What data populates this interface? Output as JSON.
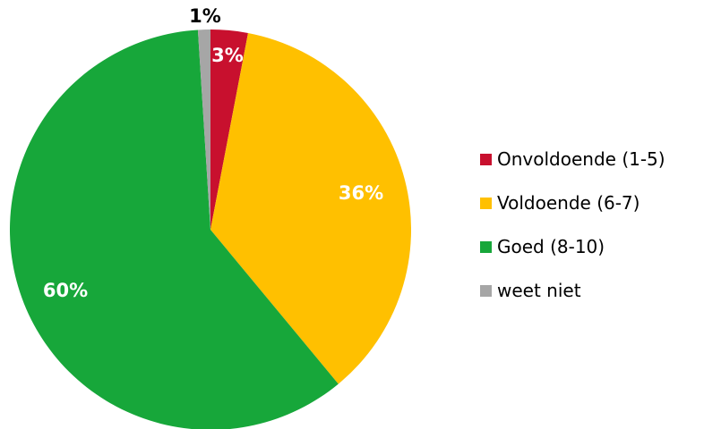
{
  "chart_data": {
    "type": "pie",
    "title": "",
    "categories": [
      "Onvoldoende (1-5)",
      "Voldoende (6-7)",
      "Goed (8-10)",
      "weet niet"
    ],
    "values": [
      3,
      36,
      60,
      1
    ],
    "value_labels": [
      "3%",
      "36%",
      "60%",
      "1%"
    ],
    "colors": [
      "#c8102e",
      "#ffc000",
      "#17a73a",
      "#a6a6a6"
    ],
    "label_colors": [
      "#ffffff",
      "#ffffff",
      "#ffffff",
      "#000000"
    ],
    "start_angle_deg": 0,
    "direction": "clockwise",
    "legend_position": "right",
    "legend": [
      "Onvoldoende (1-5)",
      "Voldoende (6-7)",
      "Goed (8-10)",
      "weet niet"
    ]
  }
}
